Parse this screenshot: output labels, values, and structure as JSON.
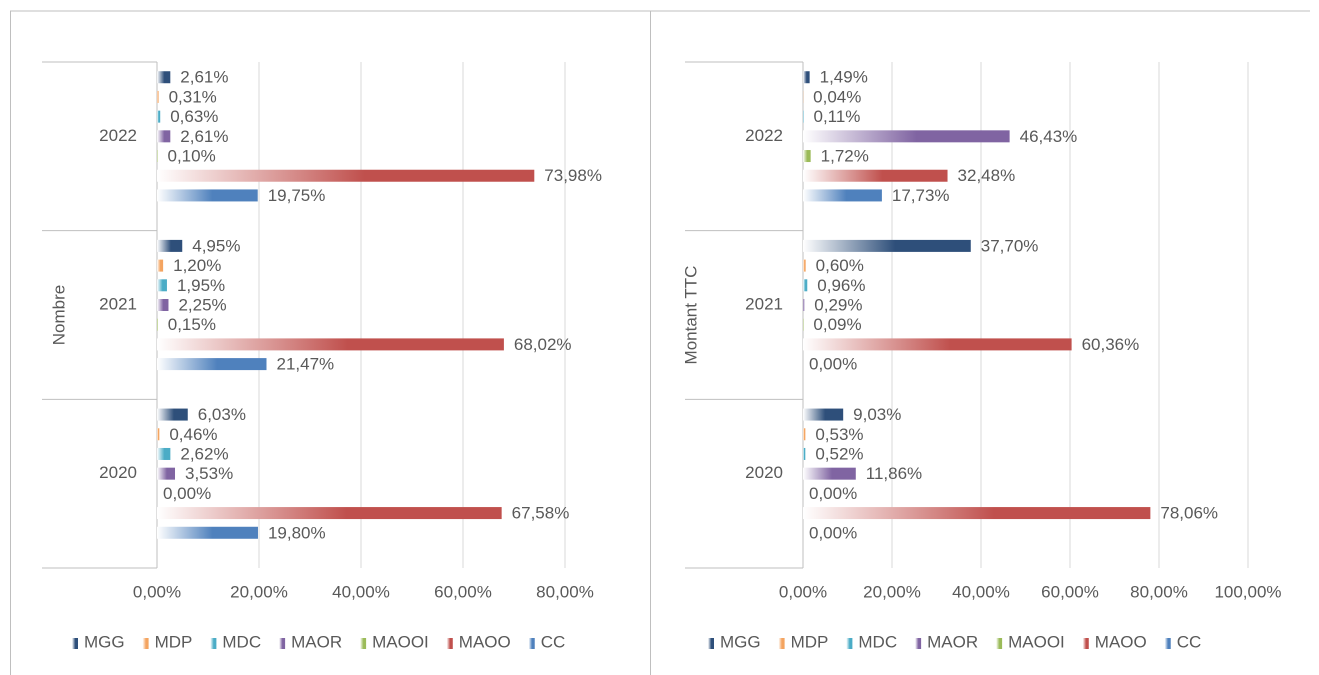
{
  "chart_data": [
    {
      "type": "barh",
      "y_label": "Nombre",
      "categories": [
        "2020",
        "2021",
        "2022"
      ],
      "xlim": [
        0,
        80
      ],
      "xticks": [
        {
          "value": 0,
          "label": "0,00%"
        },
        {
          "value": 20,
          "label": "20,00%"
        },
        {
          "value": 40,
          "label": "40,00%"
        },
        {
          "value": 60,
          "label": "60,00%"
        },
        {
          "value": 80,
          "label": "80,00%"
        }
      ],
      "grid": true,
      "legend": "bottom",
      "series": [
        {
          "name": "MGG",
          "color": "#2e4f7a",
          "values": [
            6.03,
            4.95,
            2.61
          ],
          "value_labels": [
            "6,03%",
            "4,95%",
            "2,61%"
          ]
        },
        {
          "name": "MDP",
          "color": "#f4a460",
          "values": [
            0.46,
            1.2,
            0.31
          ],
          "value_labels": [
            "0,46%",
            "1,20%",
            "0,31%"
          ]
        },
        {
          "name": "MDC",
          "color": "#4bacc6",
          "values": [
            2.62,
            1.95,
            0.63
          ],
          "value_labels": [
            "2,62%",
            "1,95%",
            "0,63%"
          ]
        },
        {
          "name": "MAOR",
          "color": "#8064a2",
          "values": [
            3.53,
            2.25,
            2.61
          ],
          "value_labels": [
            "3,53%",
            "2,25%",
            "2,61%"
          ]
        },
        {
          "name": "MAOOI",
          "color": "#9bbb59",
          "values": [
            0.0,
            0.15,
            0.1
          ],
          "value_labels": [
            "0,00%",
            "0,15%",
            "0,10%"
          ]
        },
        {
          "name": "MAOO",
          "color": "#c0504d",
          "values": [
            67.58,
            68.02,
            73.98
          ],
          "value_labels": [
            "67,58%",
            "68,02%",
            "73,98%"
          ]
        },
        {
          "name": "CC",
          "color": "#4f81bd",
          "values": [
            19.8,
            21.47,
            19.75
          ],
          "value_labels": [
            "19,80%",
            "21,47%",
            "19,75%"
          ]
        }
      ]
    },
    {
      "type": "barh",
      "y_label": "Montant TTC",
      "categories": [
        "2020",
        "2021",
        "2022"
      ],
      "xlim": [
        0,
        100
      ],
      "xticks": [
        {
          "value": 0,
          "label": "0,00%"
        },
        {
          "value": 20,
          "label": "20,00%"
        },
        {
          "value": 40,
          "label": "40,00%"
        },
        {
          "value": 60,
          "label": "60,00%"
        },
        {
          "value": 80,
          "label": "80,00%"
        },
        {
          "value": 100,
          "label": "100,00%"
        }
      ],
      "grid": true,
      "legend": "bottom",
      "series": [
        {
          "name": "MGG",
          "color": "#2e4f7a",
          "values": [
            9.03,
            37.7,
            1.49
          ],
          "value_labels": [
            "9,03%",
            "37,70%",
            "1,49%"
          ]
        },
        {
          "name": "MDP",
          "color": "#f4a460",
          "values": [
            0.53,
            0.6,
            0.04
          ],
          "value_labels": [
            "0,53%",
            "0,60%",
            "0,04%"
          ]
        },
        {
          "name": "MDC",
          "color": "#4bacc6",
          "values": [
            0.52,
            0.96,
            0.11
          ],
          "value_labels": [
            "0,52%",
            "0,96%",
            "0,11%"
          ]
        },
        {
          "name": "MAOR",
          "color": "#8064a2",
          "values": [
            11.86,
            0.29,
            46.43
          ],
          "value_labels": [
            "11,86%",
            "0,29%",
            "46,43%"
          ]
        },
        {
          "name": "MAOOI",
          "color": "#9bbb59",
          "values": [
            0.0,
            0.09,
            1.72
          ],
          "value_labels": [
            "0,00%",
            "0,09%",
            "1,72%"
          ]
        },
        {
          "name": "MAOO",
          "color": "#c0504d",
          "values": [
            78.06,
            60.36,
            32.48
          ],
          "value_labels": [
            "78,06%",
            "60,36%",
            "32,48%"
          ]
        },
        {
          "name": "CC",
          "color": "#4f81bd",
          "values": [
            0.0,
            0.0,
            17.73
          ],
          "value_labels": [
            "0,00%",
            "0,00%",
            "17,73%"
          ]
        }
      ]
    }
  ]
}
